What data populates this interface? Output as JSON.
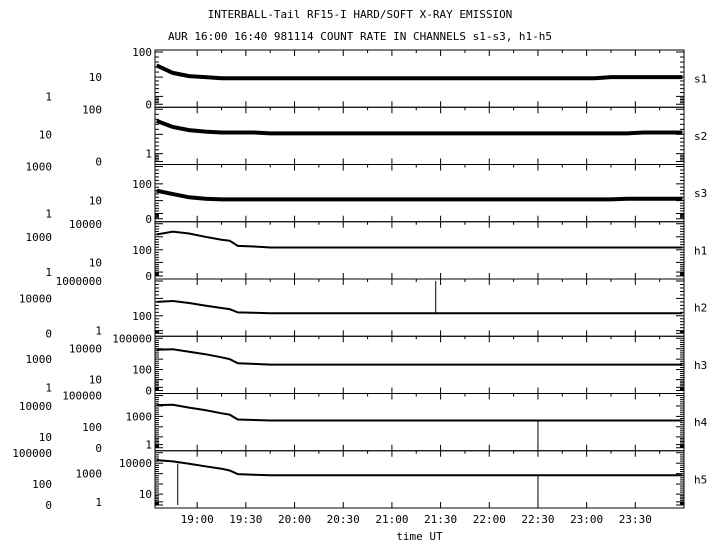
{
  "chart_data": {
    "type": "line",
    "title": "INTERBALL-Tail RF15-I HARD/SOFT X-RAY EMISSION",
    "subtitle": "AUR 16:00 16:40 981114  COUNT RATE IN CHANNELS s1-s3, h1-h5",
    "xlabel": "time UT",
    "xlim": [
      "18:34",
      "24:00"
    ],
    "x_ticks": [
      "19:00",
      "19:30",
      "20:00",
      "20:30",
      "21:00",
      "21:30",
      "22:00",
      "22:30",
      "23:00",
      "23:30"
    ],
    "y_scale": "log",
    "grid": false,
    "line_color": "#000000",
    "x": [
      "18:35",
      "18:45",
      "18:55",
      "19:05",
      "19:15",
      "19:20",
      "19:25",
      "19:35",
      "19:45",
      "19:55",
      "20:05",
      "20:15",
      "20:25",
      "20:35",
      "20:45",
      "20:55",
      "21:05",
      "21:15",
      "21:25",
      "21:35",
      "21:45",
      "21:55",
      "22:05",
      "22:15",
      "22:25",
      "22:35",
      "22:45",
      "22:55",
      "23:05",
      "23:15",
      "23:25",
      "23:35",
      "23:45",
      "23:59"
    ],
    "panels": [
      {
        "name": "s1",
        "y_ticks": [
          "100",
          "10",
          "1",
          "0"
        ],
        "values": [
          30,
          15,
          11,
          10,
          9,
          9,
          9,
          9,
          9,
          9,
          9,
          9,
          9,
          9,
          9,
          9,
          9,
          9,
          9,
          9,
          9,
          9,
          9,
          9,
          9,
          9,
          9,
          9,
          9,
          10,
          10,
          10,
          10,
          10
        ]
      },
      {
        "name": "s2",
        "y_ticks": [
          "100",
          "10",
          "1",
          "0"
        ],
        "values": [
          35,
          20,
          15,
          13,
          12,
          12,
          12,
          12,
          11,
          11,
          11,
          11,
          11,
          11,
          11,
          11,
          11,
          11,
          11,
          11,
          11,
          11,
          11,
          11,
          11,
          11,
          11,
          11,
          11,
          11,
          11,
          12,
          12,
          12
        ]
      },
      {
        "name": "s3",
        "y_ticks": [
          "1000",
          "100",
          "10",
          "1",
          "0"
        ],
        "values": [
          40,
          25,
          16,
          13,
          12,
          12,
          12,
          12,
          12,
          12,
          12,
          12,
          12,
          12,
          12,
          12,
          12,
          12,
          12,
          12,
          12,
          12,
          12,
          12,
          12,
          12,
          12,
          12,
          12,
          12,
          13,
          13,
          13,
          13
        ]
      },
      {
        "name": "h1",
        "y_ticks": [
          "10000",
          "1000",
          "100",
          "10",
          "1",
          "0"
        ],
        "values": [
          1500,
          2500,
          1800,
          1000,
          600,
          500,
          200,
          180,
          150,
          150,
          150,
          150,
          150,
          150,
          150,
          150,
          150,
          150,
          150,
          150,
          150,
          150,
          150,
          150,
          150,
          150,
          150,
          150,
          150,
          150,
          150,
          150,
          150,
          150
        ]
      },
      {
        "name": "h2",
        "y_ticks": [
          "1000000",
          "10000",
          "100",
          "1",
          "0"
        ],
        "values": [
          4000,
          5000,
          3000,
          1500,
          800,
          600,
          250,
          220,
          200,
          200,
          200,
          200,
          200,
          200,
          200,
          200,
          200,
          200,
          200,
          200,
          200,
          200,
          200,
          200,
          200,
          200,
          200,
          200,
          200,
          200,
          200,
          200,
          200,
          200
        ],
        "spikes": [
          {
            "x": "21:27",
            "value": 1000000
          }
        ]
      },
      {
        "name": "h3",
        "y_ticks": [
          "100000",
          "10000",
          "1000",
          "100",
          "10",
          "1",
          "0"
        ],
        "values": [
          8000,
          9000,
          5000,
          3000,
          1500,
          1000,
          400,
          350,
          300,
          300,
          300,
          300,
          300,
          300,
          300,
          300,
          300,
          300,
          300,
          300,
          300,
          300,
          300,
          300,
          300,
          300,
          300,
          300,
          300,
          300,
          300,
          300,
          300,
          300
        ]
      },
      {
        "name": "h4",
        "y_ticks": [
          "100000",
          "10000",
          "1000",
          "100",
          "10",
          "1",
          "0"
        ],
        "values": [
          12000,
          13000,
          7000,
          4000,
          2000,
          1500,
          500,
          450,
          400,
          400,
          400,
          400,
          400,
          400,
          400,
          400,
          400,
          400,
          400,
          400,
          400,
          400,
          400,
          400,
          400,
          400,
          400,
          400,
          400,
          400,
          400,
          400,
          400,
          400
        ],
        "spikes": [
          {
            "x": "22:30",
            "value": 0
          }
        ]
      },
      {
        "name": "h5",
        "y_ticks": [
          "100000",
          "10000",
          "1000",
          "100",
          "10",
          "1",
          "0"
        ],
        "values": [
          20000,
          15000,
          9000,
          5000,
          3000,
          2000,
          900,
          800,
          700,
          700,
          700,
          700,
          700,
          700,
          700,
          700,
          700,
          700,
          700,
          700,
          700,
          700,
          700,
          700,
          700,
          700,
          700,
          700,
          700,
          700,
          700,
          700,
          700,
          700
        ],
        "spikes": [
          {
            "x": "18:48",
            "value": 0
          },
          {
            "x": "22:30",
            "value": 0
          }
        ]
      }
    ]
  }
}
